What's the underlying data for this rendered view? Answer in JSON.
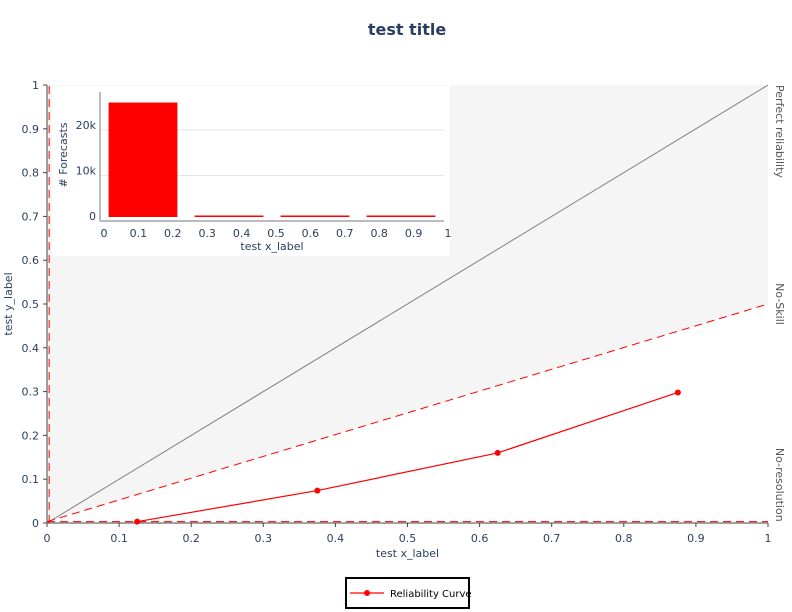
{
  "chart_data": [
    {
      "type": "line",
      "title": "test title",
      "xlabel": "test x_label",
      "ylabel": "test y_label",
      "xlim": [
        0,
        1
      ],
      "ylim": [
        0,
        1
      ],
      "x_ticks": [
        0,
        0.1,
        0.2,
        0.3,
        0.4,
        0.5,
        0.6,
        0.7,
        0.8,
        0.9,
        1
      ],
      "y_ticks": [
        0,
        0.1,
        0.2,
        0.3,
        0.4,
        0.5,
        0.6,
        0.7,
        0.8,
        0.9,
        1
      ],
      "x_tick_labels": [
        "0",
        "0.1",
        "0.2",
        "0.3",
        "0.4",
        "0.5",
        "0.6",
        "0.7",
        "0.8",
        "0.9",
        "1"
      ],
      "y_tick_labels": [
        "0",
        "0.1",
        "0.2",
        "0.3",
        "0.4",
        "0.5",
        "0.6",
        "0.7",
        "0.8",
        "0.9",
        "1"
      ],
      "series": [
        {
          "name": "Reliability Curve",
          "x": [
            0.125,
            0.375,
            0.625,
            0.875
          ],
          "y": [
            0.003,
            0.074,
            0.16,
            0.298
          ],
          "color": "#ff0000",
          "mode": "lines+markers"
        }
      ],
      "reference_lines": {
        "perfect_reliability": {
          "label": "Perfect reliability",
          "x": [
            0,
            1
          ],
          "y": [
            0,
            1
          ],
          "color": "#808080"
        },
        "no_skill": {
          "label": "No-Skill",
          "x": [
            0,
            1
          ],
          "y": [
            0.003,
            0.5
          ],
          "color": "#ff0000",
          "dash": true
        },
        "no_resolution": {
          "label": "No-resolution",
          "y": 0.003,
          "color": "#ff0000",
          "dash": true
        },
        "climatology_vertical": {
          "x": 0.003,
          "color": "#ff0000",
          "dash": true
        }
      },
      "skill_region_color": "#f5f5f5",
      "legend": {
        "position": "bottom-center",
        "entries": [
          "Reliability Curve"
        ]
      }
    },
    {
      "type": "bar",
      "title": "",
      "xlabel": "test x_label",
      "ylabel": "# Forecasts",
      "xlim": [
        0,
        1
      ],
      "ylim": [
        0,
        27000
      ],
      "x_ticks": [
        0,
        0.1,
        0.2,
        0.3,
        0.4,
        0.5,
        0.6,
        0.7,
        0.8,
        0.9,
        1
      ],
      "x_tick_labels": [
        "0",
        "0.1",
        "0.2",
        "0.3",
        "0.4",
        "0.5",
        "0.6",
        "0.7",
        "0.8",
        "0.9",
        "1"
      ],
      "y_ticks": [
        0,
        10000,
        20000
      ],
      "y_tick_labels": [
        "0",
        "10k",
        "20k"
      ],
      "bins": [
        {
          "x0": 0.025,
          "x1": 0.225,
          "value": 26000
        },
        {
          "x0": 0.275,
          "x1": 0.475,
          "value": 700
        },
        {
          "x0": 0.525,
          "x1": 0.725,
          "value": 300
        },
        {
          "x0": 0.775,
          "x1": 0.975,
          "value": 120
        }
      ],
      "color": "#ff0000"
    }
  ]
}
